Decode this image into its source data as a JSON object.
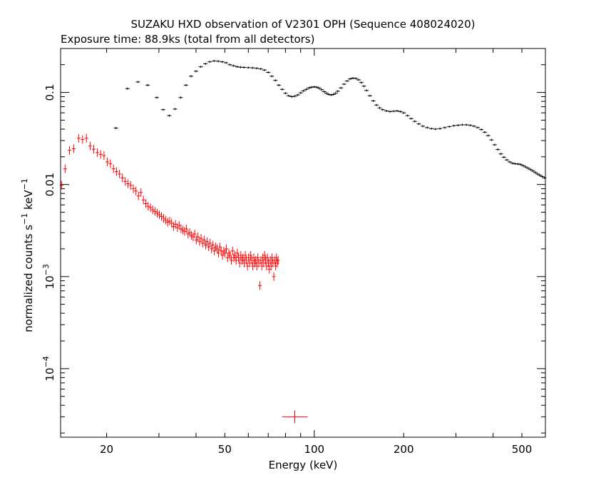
{
  "chart_data": {
    "type": "scatter",
    "title": "SUZAKU HXD observation of V2301 OPH (Sequence 408024020)",
    "subtitle": "Exposure time: 88.9ks (total from all detectors)",
    "xlabel": "Energy (keV)",
    "ylabel": "normalized counts s",
    "ylabel_sup1": "−1",
    "ylabel_mid": " keV",
    "ylabel_sup2": "−1",
    "xscale": "log",
    "yscale": "log",
    "xlim": [
      14,
      600
    ],
    "ylim": [
      1.8e-05,
      0.3
    ],
    "xticks": [
      {
        "value": 20,
        "label": "20"
      },
      {
        "value": 50,
        "label": "50"
      },
      {
        "value": 100,
        "label": "100"
      },
      {
        "value": 200,
        "label": "200"
      },
      {
        "value": 500,
        "label": "500"
      }
    ],
    "yticks": [
      {
        "value": 0.1,
        "label": "0.1"
      },
      {
        "value": 0.01,
        "label": "0.01"
      },
      {
        "value": 0.001,
        "label": "10",
        "sup": "−3"
      },
      {
        "value": 0.0001,
        "label": "10",
        "sup": "−4"
      }
    ],
    "series": [
      {
        "color": "#ff0000",
        "points": [
          [
            14.1,
            0.0098
          ],
          [
            14.5,
            0.0148
          ],
          [
            15.0,
            0.0235
          ],
          [
            15.5,
            0.0245
          ],
          [
            16.1,
            0.0318
          ],
          [
            16.6,
            0.0308
          ],
          [
            17.1,
            0.0318
          ],
          [
            17.6,
            0.0262
          ],
          [
            18.1,
            0.0242
          ],
          [
            18.6,
            0.0222
          ],
          [
            19.1,
            0.0212
          ],
          [
            19.6,
            0.0206
          ],
          [
            20.1,
            0.0176
          ],
          [
            20.6,
            0.0168
          ],
          [
            21.1,
            0.0148
          ],
          [
            21.6,
            0.0138
          ],
          [
            22.1,
            0.013
          ],
          [
            22.6,
            0.0118
          ],
          [
            23.1,
            0.0108
          ],
          [
            23.6,
            0.0102
          ],
          [
            24.1,
            0.0098
          ],
          [
            24.6,
            0.009
          ],
          [
            25.1,
            0.0085
          ],
          [
            25.6,
            0.0075
          ],
          [
            26.1,
            0.0082
          ],
          [
            26.6,
            0.0068
          ],
          [
            27.1,
            0.0062
          ],
          [
            27.6,
            0.0058
          ],
          [
            28.1,
            0.0056
          ],
          [
            28.6,
            0.0053
          ],
          [
            29.1,
            0.0051
          ],
          [
            29.6,
            0.0049
          ],
          [
            30.1,
            0.0047
          ],
          [
            30.6,
            0.0045
          ],
          [
            31.1,
            0.0043
          ],
          [
            31.6,
            0.0041
          ],
          [
            32.1,
            0.0039
          ],
          [
            32.6,
            0.004
          ],
          [
            33.1,
            0.0038
          ],
          [
            33.6,
            0.0035
          ],
          [
            34.1,
            0.0037
          ],
          [
            34.6,
            0.0034
          ],
          [
            35.1,
            0.0036
          ],
          [
            35.6,
            0.0033
          ],
          [
            36.1,
            0.0032
          ],
          [
            36.6,
            0.0031
          ],
          [
            37.1,
            0.0033
          ],
          [
            37.6,
            0.0029
          ],
          [
            38.1,
            0.003
          ],
          [
            38.6,
            0.0028
          ],
          [
            39.1,
            0.0027
          ],
          [
            39.6,
            0.0029
          ],
          [
            40.1,
            0.0025
          ],
          [
            40.6,
            0.0027
          ],
          [
            41.1,
            0.0024
          ],
          [
            41.6,
            0.0026
          ],
          [
            42.1,
            0.0023
          ],
          [
            42.6,
            0.0025
          ],
          [
            43.1,
            0.0022
          ],
          [
            43.6,
            0.0024
          ],
          [
            44.1,
            0.0021
          ],
          [
            44.6,
            0.0023
          ],
          [
            45.1,
            0.002
          ],
          [
            45.6,
            0.0022
          ],
          [
            46.1,
            0.0019
          ],
          [
            46.6,
            0.0021
          ],
          [
            47.1,
            0.002
          ],
          [
            47.6,
            0.0018
          ],
          [
            48.1,
            0.0021
          ],
          [
            48.6,
            0.0019
          ],
          [
            49.1,
            0.0017
          ],
          [
            49.6,
            0.0019
          ],
          [
            50.1,
            0.0018
          ],
          [
            50.6,
            0.002
          ],
          [
            51.1,
            0.0016
          ],
          [
            51.6,
            0.0018
          ],
          [
            52.1,
            0.0017
          ],
          [
            52.6,
            0.0015
          ],
          [
            53.1,
            0.0019
          ],
          [
            53.6,
            0.0016
          ],
          [
            54.1,
            0.0017
          ],
          [
            54.6,
            0.0015
          ],
          [
            55.1,
            0.0018
          ],
          [
            55.6,
            0.0016
          ],
          [
            56.1,
            0.0014
          ],
          [
            56.6,
            0.0017
          ],
          [
            57.1,
            0.0015
          ],
          [
            57.6,
            0.0016
          ],
          [
            58.1,
            0.0014
          ],
          [
            58.6,
            0.0017
          ],
          [
            59.1,
            0.0015
          ],
          [
            59.6,
            0.0013
          ],
          [
            60.1,
            0.0016
          ],
          [
            60.6,
            0.0014
          ],
          [
            61.1,
            0.0017
          ],
          [
            61.6,
            0.0015
          ],
          [
            62.1,
            0.0013
          ],
          [
            62.6,
            0.0016
          ],
          [
            63.1,
            0.0014
          ],
          [
            63.6,
            0.0015
          ],
          [
            64.1,
            0.0013
          ],
          [
            64.6,
            0.0016
          ],
          [
            65.1,
            0.0014
          ],
          [
            65.6,
            0.0008
          ],
          [
            66.1,
            0.0015
          ],
          [
            66.6,
            0.0013
          ],
          [
            67.1,
            0.0016
          ],
          [
            67.6,
            0.0014
          ],
          [
            68.1,
            0.0017
          ],
          [
            68.6,
            0.0015
          ],
          [
            69.1,
            0.0013
          ],
          [
            69.6,
            0.0016
          ],
          [
            70.1,
            0.0014
          ],
          [
            70.6,
            0.0012
          ],
          [
            71.1,
            0.0015
          ],
          [
            71.6,
            0.0013
          ],
          [
            72.1,
            0.0016
          ],
          [
            72.6,
            0.0014
          ],
          [
            73.1,
            0.001
          ],
          [
            73.6,
            0.0015
          ],
          [
            74.1,
            0.0013
          ],
          [
            74.6,
            0.0016
          ],
          [
            75.1,
            0.0014
          ],
          [
            75.6,
            0.0015
          ]
        ],
        "big_point": [
          86,
          3e-05
        ]
      },
      {
        "color": "#000000",
        "points": [
          [
            21.5,
            0.041
          ],
          [
            23.5,
            0.11
          ],
          [
            25.5,
            0.13
          ],
          [
            27.5,
            0.12
          ],
          [
            29.5,
            0.088
          ],
          [
            31.0,
            0.065
          ],
          [
            32.5,
            0.056
          ],
          [
            34.0,
            0.066
          ],
          [
            35.5,
            0.088
          ],
          [
            37.0,
            0.12
          ],
          [
            38.5,
            0.15
          ],
          [
            40.0,
            0.17
          ],
          [
            41.5,
            0.19
          ],
          [
            43.0,
            0.205
          ],
          [
            44.5,
            0.215
          ],
          [
            46.0,
            0.22
          ],
          [
            47.5,
            0.218
          ],
          [
            49.0,
            0.215
          ],
          [
            50.5,
            0.21
          ],
          [
            52.0,
            0.2
          ],
          [
            53.5,
            0.195
          ],
          [
            55.0,
            0.19
          ],
          [
            56.5,
            0.188
          ],
          [
            58.0,
            0.187
          ],
          [
            60.0,
            0.186
          ],
          [
            62.0,
            0.185
          ],
          [
            64.0,
            0.183
          ],
          [
            66.0,
            0.18
          ],
          [
            68.0,
            0.175
          ],
          [
            70.0,
            0.165
          ],
          [
            72.0,
            0.15
          ],
          [
            74.0,
            0.135
          ],
          [
            76.0,
            0.12
          ],
          [
            78.0,
            0.108
          ],
          [
            80.0,
            0.098
          ],
          [
            82.0,
            0.092
          ],
          [
            84.0,
            0.09
          ],
          [
            86.0,
            0.091
          ],
          [
            88.0,
            0.094
          ],
          [
            90.0,
            0.099
          ],
          [
            92.0,
            0.104
          ],
          [
            94.0,
            0.108
          ],
          [
            96.0,
            0.112
          ],
          [
            98.0,
            0.114
          ],
          [
            100.0,
            0.115
          ],
          [
            102.0,
            0.114
          ],
          [
            104.0,
            0.111
          ],
          [
            106.0,
            0.107
          ],
          [
            108.0,
            0.102
          ],
          [
            110.0,
            0.098
          ],
          [
            112.0,
            0.095
          ],
          [
            114.0,
            0.094
          ],
          [
            116.0,
            0.095
          ],
          [
            118.0,
            0.098
          ],
          [
            120.0,
            0.103
          ],
          [
            123.0,
            0.112
          ],
          [
            126.0,
            0.123
          ],
          [
            129.0,
            0.133
          ],
          [
            132.0,
            0.14
          ],
          [
            135.0,
            0.143
          ],
          [
            138.0,
            0.142
          ],
          [
            141.0,
            0.137
          ],
          [
            144.0,
            0.128
          ],
          [
            147.0,
            0.117
          ],
          [
            150.0,
            0.105
          ],
          [
            154.0,
            0.092
          ],
          [
            158.0,
            0.081
          ],
          [
            162.0,
            0.073
          ],
          [
            166.0,
            0.068
          ],
          [
            170.0,
            0.065
          ],
          [
            175.0,
            0.063
          ],
          [
            180.0,
            0.062
          ],
          [
            185.0,
            0.0625
          ],
          [
            190.0,
            0.063
          ],
          [
            195.0,
            0.062
          ],
          [
            200.0,
            0.06
          ],
          [
            206.0,
            0.056
          ],
          [
            212.0,
            0.052
          ],
          [
            218.0,
            0.0485
          ],
          [
            225.0,
            0.0455
          ],
          [
            232.0,
            0.043
          ],
          [
            240.0,
            0.0415
          ],
          [
            248.0,
            0.0405
          ],
          [
            256.0,
            0.04
          ],
          [
            265.0,
            0.0405
          ],
          [
            275.0,
            0.0415
          ],
          [
            285.0,
            0.0425
          ],
          [
            295.0,
            0.0435
          ],
          [
            305.0,
            0.044
          ],
          [
            315.0,
            0.0445
          ],
          [
            325.0,
            0.0445
          ],
          [
            335.0,
            0.044
          ],
          [
            345.0,
            0.043
          ],
          [
            355.0,
            0.0415
          ],
          [
            365.0,
            0.0395
          ],
          [
            375.0,
            0.037
          ],
          [
            385.0,
            0.034
          ],
          [
            395.0,
            0.0305
          ],
          [
            405.0,
            0.027
          ],
          [
            415.0,
            0.024
          ],
          [
            425.0,
            0.0215
          ],
          [
            435.0,
            0.0198
          ],
          [
            445.0,
            0.0185
          ],
          [
            455.0,
            0.0176
          ],
          [
            465.0,
            0.017
          ],
          [
            475.0,
            0.0168
          ],
          [
            485.0,
            0.0167
          ],
          [
            495.0,
            0.0165
          ],
          [
            505.0,
            0.016
          ],
          [
            515.0,
            0.0155
          ],
          [
            525.0,
            0.015
          ],
          [
            535.0,
            0.0145
          ],
          [
            545.0,
            0.014
          ],
          [
            555.0,
            0.0135
          ],
          [
            565.0,
            0.013
          ],
          [
            575.0,
            0.0126
          ],
          [
            585.0,
            0.0122
          ],
          [
            595.0,
            0.0118
          ]
        ]
      }
    ]
  }
}
